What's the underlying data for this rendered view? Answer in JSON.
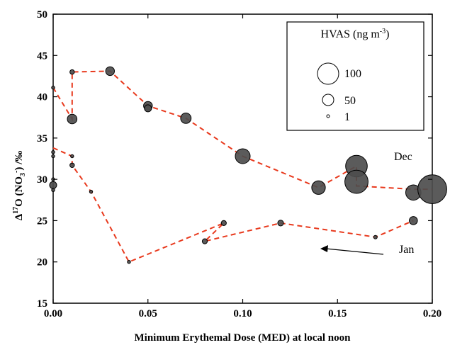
{
  "chart_data": {
    "type": "scatter",
    "xlabel": "Minimum Erythemal Dose (MED) at local noon",
    "ylabel": "Δ17O (NO3-) /‰",
    "xlim": [
      0.0,
      0.2
    ],
    "ylim": [
      15,
      50
    ],
    "x_ticks": [
      "0.00",
      "0.05",
      "0.10",
      "0.15",
      "0.20"
    ],
    "y_ticks": [
      "15",
      "20",
      "25",
      "30",
      "35",
      "40",
      "45",
      "50"
    ],
    "grid": false,
    "legend": {
      "position": "top-right",
      "title": "HVAS",
      "title_unit": "(ng m",
      "title_exp": "-3",
      "title_close": ")",
      "entries": [
        {
          "label": "100",
          "size": 100
        },
        {
          "label": "50",
          "size": 50
        },
        {
          "label": "1",
          "size": 1
        }
      ]
    },
    "annotations": {
      "dec": "Dec",
      "jan": "Jan"
    },
    "colors": {
      "marker_fill": "#4d4d4d",
      "marker_stroke": "#000000",
      "line": "#e8391d"
    },
    "series": [
      {
        "name": "Dec",
        "points": [
          {
            "x": 0.0,
            "y": 41.1,
            "size": 1
          },
          {
            "x": 0.01,
            "y": 37.3,
            "size": 22
          },
          {
            "x": 0.01,
            "y": 43.0,
            "size": 5
          },
          {
            "x": 0.03,
            "y": 43.1,
            "size": 18
          },
          {
            "x": 0.05,
            "y": 38.9,
            "size": 18
          },
          {
            "x": 0.05,
            "y": 38.6,
            "size": 12
          },
          {
            "x": 0.07,
            "y": 37.4,
            "size": 26
          },
          {
            "x": 0.1,
            "y": 32.8,
            "size": 52
          },
          {
            "x": 0.14,
            "y": 29.0,
            "size": 44
          },
          {
            "x": 0.16,
            "y": 31.6,
            "size": 112
          },
          {
            "x": 0.16,
            "y": 29.7,
            "size": 128
          },
          {
            "x": 0.19,
            "y": 28.4,
            "size": 55
          },
          {
            "x": 0.2,
            "y": 28.8,
            "size": 197
          }
        ],
        "line": [
          [
            0.0,
            41.1
          ],
          [
            0.01,
            37.3
          ],
          [
            0.01,
            43.0
          ],
          [
            0.03,
            43.1
          ],
          [
            0.05,
            38.9
          ],
          [
            0.07,
            37.4
          ],
          [
            0.1,
            32.8
          ],
          [
            0.14,
            29.0
          ],
          [
            0.16,
            31.6
          ],
          [
            0.16,
            29.2
          ],
          [
            0.19,
            28.8
          ],
          [
            0.2,
            28.8
          ]
        ]
      },
      {
        "name": "Jan",
        "points": [
          {
            "x": 0.0,
            "y": 33.3,
            "size": 2
          },
          {
            "x": 0.0,
            "y": 32.8,
            "size": 2
          },
          {
            "x": 0.0,
            "y": 30.0,
            "size": 1
          },
          {
            "x": 0.0,
            "y": 29.3,
            "size": 12
          },
          {
            "x": 0.0,
            "y": 28.7,
            "size": 1
          },
          {
            "x": 0.01,
            "y": 32.8,
            "size": 2
          },
          {
            "x": 0.01,
            "y": 31.7,
            "size": 5
          },
          {
            "x": 0.02,
            "y": 28.5,
            "size": 2
          },
          {
            "x": 0.04,
            "y": 20.0,
            "size": 2
          },
          {
            "x": 0.08,
            "y": 22.5,
            "size": 6
          },
          {
            "x": 0.09,
            "y": 24.7,
            "size": 6
          },
          {
            "x": 0.12,
            "y": 24.7,
            "size": 8
          },
          {
            "x": 0.17,
            "y": 23.0,
            "size": 3
          },
          {
            "x": 0.19,
            "y": 25.0,
            "size": 16
          }
        ],
        "line": [
          [
            0.0,
            33.8
          ],
          [
            0.01,
            32.8
          ],
          [
            0.01,
            31.7
          ],
          [
            0.02,
            28.5
          ],
          [
            0.04,
            20.0
          ],
          [
            0.09,
            24.7
          ],
          [
            0.08,
            22.5
          ],
          [
            0.12,
            24.7
          ],
          [
            0.17,
            23.0
          ],
          [
            0.19,
            25.0
          ]
        ]
      }
    ]
  }
}
